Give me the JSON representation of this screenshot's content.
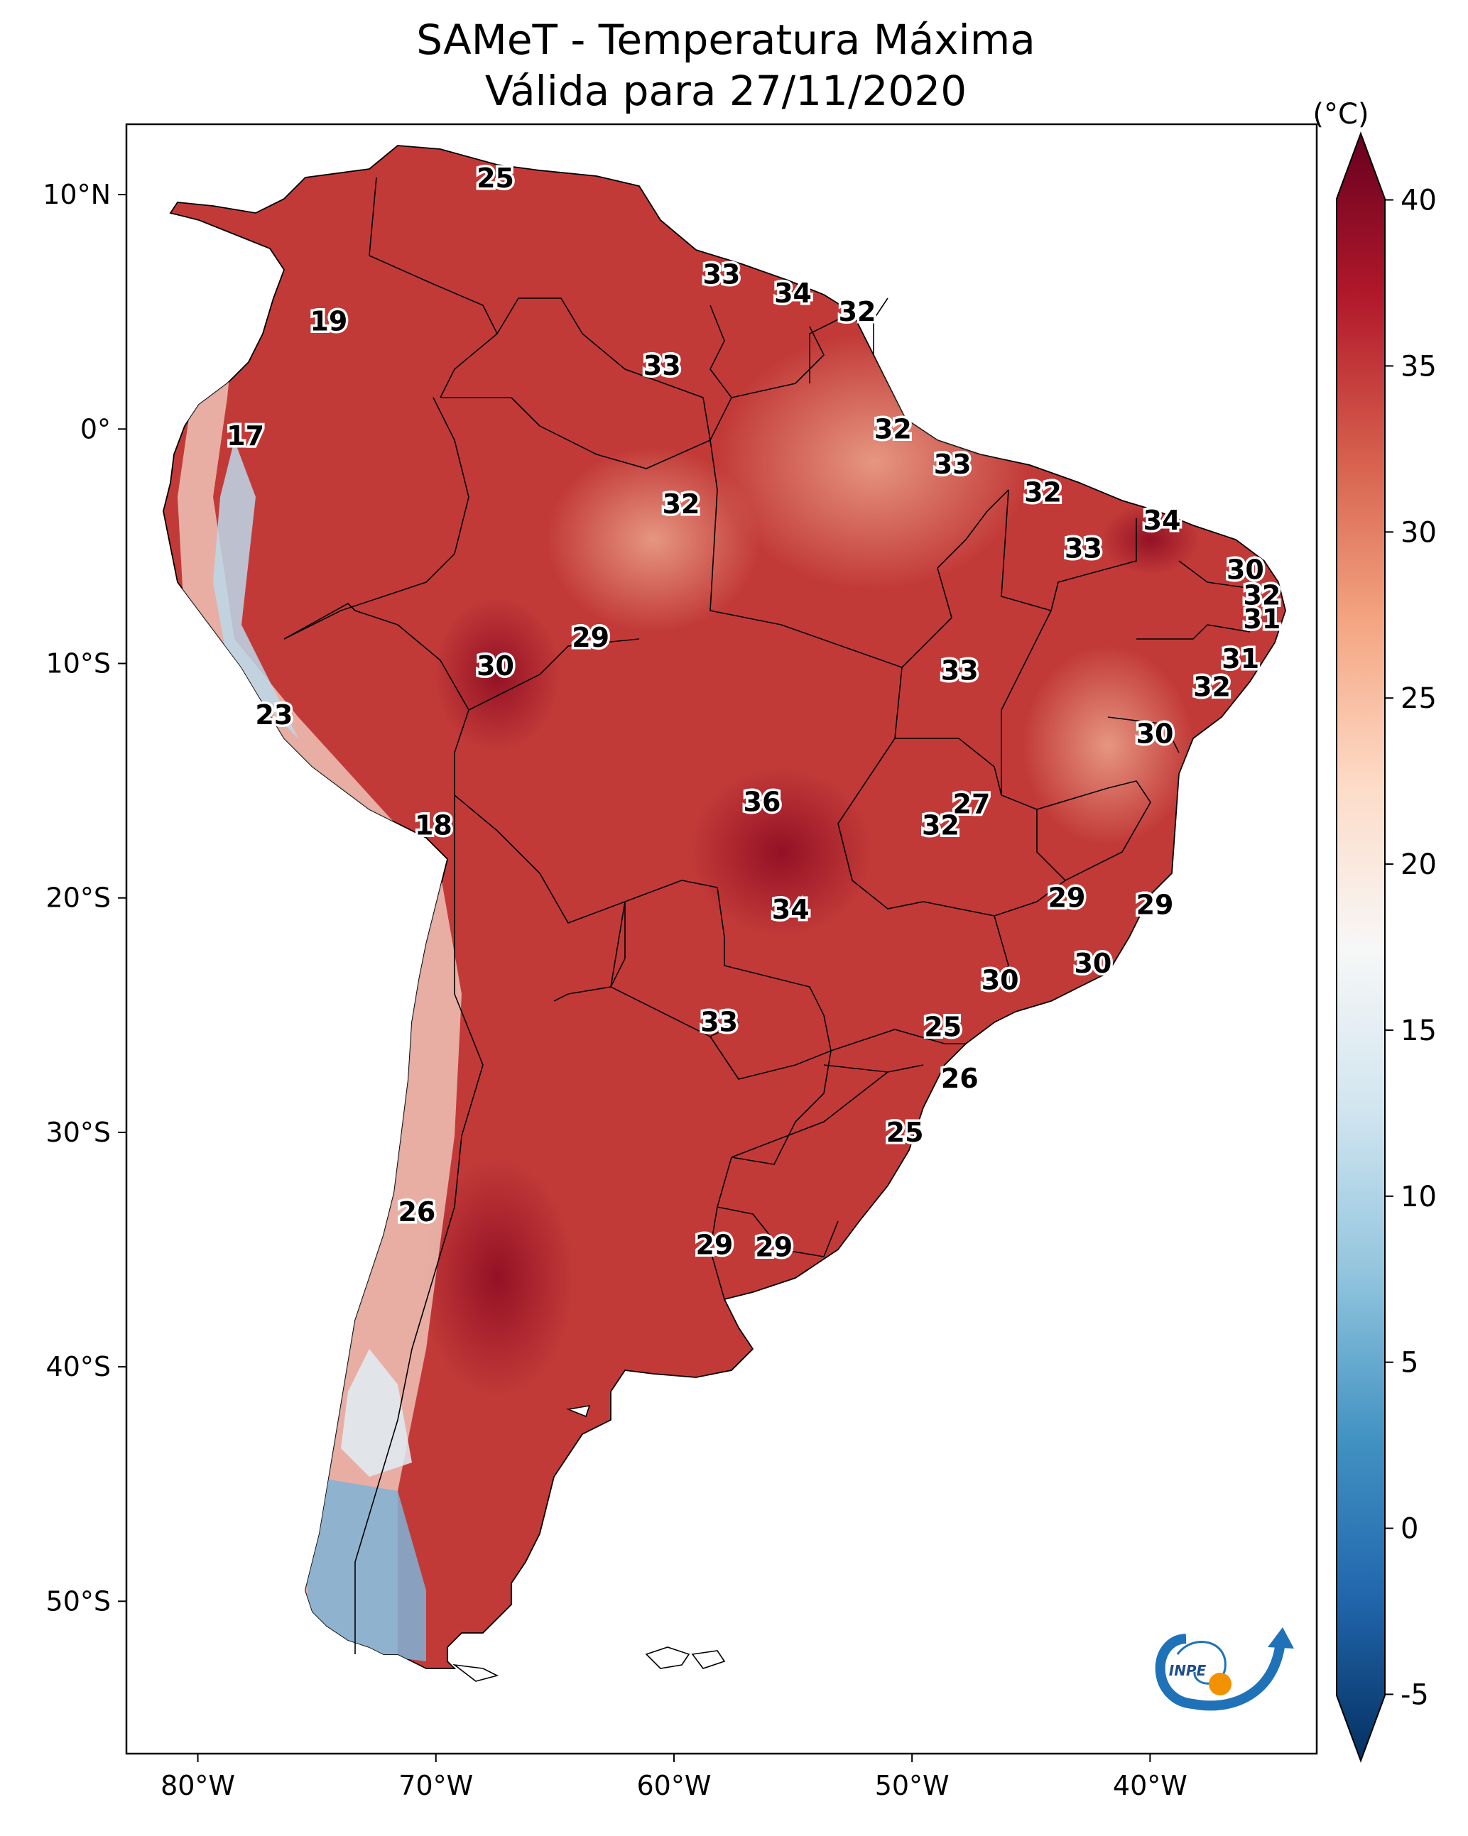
{
  "title": {
    "line1": "SAMeT - Temperatura Máxima",
    "line2": "Válida para 27/11/2020"
  },
  "map": {
    "lat_ticks": [
      "10°N",
      "0°",
      "10°S",
      "20°S",
      "30°S",
      "40°S",
      "50°S"
    ],
    "lon_ticks": [
      "80°W",
      "70°W",
      "60°W",
      "50°W",
      "40°W"
    ],
    "extent": {
      "lon_min": -83,
      "lon_max": -33,
      "lat_min": -56.5,
      "lat_max": 13
    },
    "labels": [
      {
        "lon": -67.5,
        "lat": 10.7,
        "v": "25"
      },
      {
        "lon": -58.0,
        "lat": 6.6,
        "v": "33"
      },
      {
        "lon": -55.0,
        "lat": 5.8,
        "v": "34"
      },
      {
        "lon": -52.3,
        "lat": 5.0,
        "v": "32"
      },
      {
        "lon": -74.5,
        "lat": 4.6,
        "v": "19"
      },
      {
        "lon": -60.5,
        "lat": 2.7,
        "v": "33"
      },
      {
        "lon": -78.0,
        "lat": -0.3,
        "v": "17"
      },
      {
        "lon": -50.8,
        "lat": 0.0,
        "v": "32"
      },
      {
        "lon": -48.3,
        "lat": -1.5,
        "v": "33"
      },
      {
        "lon": -44.5,
        "lat": -2.7,
        "v": "32"
      },
      {
        "lon": -59.7,
        "lat": -3.2,
        "v": "32"
      },
      {
        "lon": -39.5,
        "lat": -3.9,
        "v": "34"
      },
      {
        "lon": -42.8,
        "lat": -5.1,
        "v": "33"
      },
      {
        "lon": -36.0,
        "lat": -6.0,
        "v": "30"
      },
      {
        "lon": -35.3,
        "lat": -7.1,
        "v": "32"
      },
      {
        "lon": -35.3,
        "lat": -8.1,
        "v": "31"
      },
      {
        "lon": -63.5,
        "lat": -8.9,
        "v": "29"
      },
      {
        "lon": -67.5,
        "lat": -10.1,
        "v": "30"
      },
      {
        "lon": -48.0,
        "lat": -10.3,
        "v": "33"
      },
      {
        "lon": -36.2,
        "lat": -9.8,
        "v": "31"
      },
      {
        "lon": -37.4,
        "lat": -11.0,
        "v": "32"
      },
      {
        "lon": -39.8,
        "lat": -13.0,
        "v": "30"
      },
      {
        "lon": -76.8,
        "lat": -12.2,
        "v": "23"
      },
      {
        "lon": -56.3,
        "lat": -15.9,
        "v": "36"
      },
      {
        "lon": -47.5,
        "lat": -16.0,
        "v": "27"
      },
      {
        "lon": -48.8,
        "lat": -16.9,
        "v": "32"
      },
      {
        "lon": -70.1,
        "lat": -16.9,
        "v": "18"
      },
      {
        "lon": -43.5,
        "lat": -20.0,
        "v": "29"
      },
      {
        "lon": -39.8,
        "lat": -20.3,
        "v": "29"
      },
      {
        "lon": -55.1,
        "lat": -20.5,
        "v": "34"
      },
      {
        "lon": -42.4,
        "lat": -22.8,
        "v": "30"
      },
      {
        "lon": -46.3,
        "lat": -23.5,
        "v": "30"
      },
      {
        "lon": -48.7,
        "lat": -25.5,
        "v": "25"
      },
      {
        "lon": -58.1,
        "lat": -25.3,
        "v": "33"
      },
      {
        "lon": -48.0,
        "lat": -27.7,
        "v": "26"
      },
      {
        "lon": -50.3,
        "lat": -30.0,
        "v": "25"
      },
      {
        "lon": -70.8,
        "lat": -33.4,
        "v": "26"
      },
      {
        "lon": -58.3,
        "lat": -34.8,
        "v": "29"
      },
      {
        "lon": -55.8,
        "lat": -34.9,
        "v": "29"
      }
    ],
    "logo_text": "INPE"
  },
  "colorbar": {
    "unit": "(°C)",
    "vmin": -7,
    "vmax": 42,
    "ticks": [
      "40",
      "35",
      "30",
      "25",
      "20",
      "15",
      "10",
      "5",
      "0",
      "-5"
    ],
    "colors": [
      "#053061",
      "#2166ac",
      "#4393c3",
      "#92c5de",
      "#d1e5f0",
      "#f7f7f7",
      "#fddbc7",
      "#f4a582",
      "#d6604d",
      "#b2182b",
      "#67001f"
    ]
  }
}
